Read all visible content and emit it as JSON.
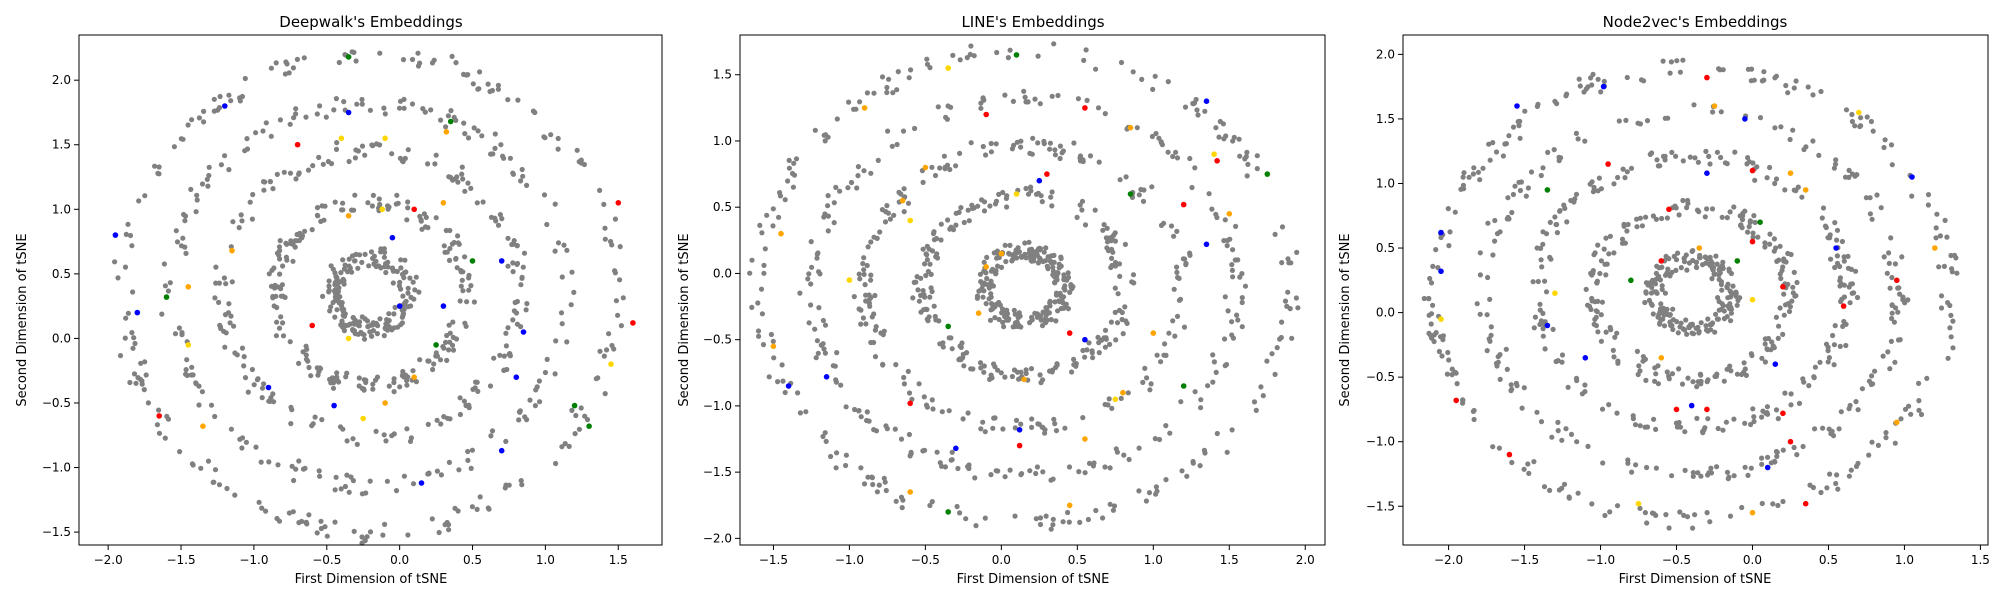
{
  "colors": {
    "background": "#ffffff",
    "frame": "#000000",
    "points_main": "#808080",
    "highlights": [
      "#0000ff",
      "#ff0000",
      "#ffd700",
      "#ffa500",
      "#008000"
    ]
  },
  "chart_data": [
    {
      "type": "scatter",
      "title": "Deepwalk's Embeddings",
      "xlabel": "First Dimension of tSNE",
      "ylabel": "Second Dimension of tSNE",
      "xlim": [
        -2.2,
        1.8
      ],
      "ylim": [
        -1.6,
        2.35
      ],
      "xticks": [
        -2.0,
        -1.5,
        -1.0,
        -0.5,
        0.0,
        0.5,
        1.0,
        1.5
      ],
      "yticks": [
        -1.5,
        -1.0,
        -0.5,
        0.0,
        0.5,
        1.0,
        1.5,
        2.0
      ],
      "tick_labels_x": [
        "−2.0",
        "−1.5",
        "−1.0",
        "−0.5",
        "0.0",
        "0.5",
        "1.0",
        "1.5"
      ],
      "tick_labels_y": [
        "−1.5",
        "−1.0",
        "−0.5",
        "0.0",
        "0.5",
        "1.0",
        "1.5",
        "2.0"
      ],
      "grid": false,
      "center": [
        -0.2,
        0.35
      ],
      "radius_x": 1.7,
      "radius_y": 1.85,
      "point_count": 950,
      "highlight_points": [
        {
          "x": -1.2,
          "y": 1.8,
          "color": "#0000ff"
        },
        {
          "x": -0.7,
          "y": 1.5,
          "color": "#ff0000"
        },
        {
          "x": -0.4,
          "y": 1.55,
          "color": "#ffd700"
        },
        {
          "x": -0.35,
          "y": 1.75,
          "color": "#0000ff"
        },
        {
          "x": -0.1,
          "y": 1.55,
          "color": "#ffd700"
        },
        {
          "x": 0.32,
          "y": 1.6,
          "color": "#ffa500"
        },
        {
          "x": 0.35,
          "y": 1.68,
          "color": "#008000"
        },
        {
          "x": -0.12,
          "y": 1.0,
          "color": "#ffd700"
        },
        {
          "x": 0.1,
          "y": 1.0,
          "color": "#ff0000"
        },
        {
          "x": 0.3,
          "y": 1.05,
          "color": "#ffa500"
        },
        {
          "x": 0.5,
          "y": 0.6,
          "color": "#008000"
        },
        {
          "x": 0.7,
          "y": 0.6,
          "color": "#0000ff"
        },
        {
          "x": 1.5,
          "y": 1.05,
          "color": "#ff0000"
        },
        {
          "x": -0.35,
          "y": 0.95,
          "color": "#ffa500"
        },
        {
          "x": -0.05,
          "y": 0.78,
          "color": "#0000ff"
        },
        {
          "x": 0.0,
          "y": 0.25,
          "color": "#0000ff"
        },
        {
          "x": 0.3,
          "y": 0.25,
          "color": "#0000ff"
        },
        {
          "x": 0.85,
          "y": 0.05,
          "color": "#0000ff"
        },
        {
          "x": 0.25,
          "y": -0.05,
          "color": "#008000"
        },
        {
          "x": -0.6,
          "y": 0.1,
          "color": "#ff0000"
        },
        {
          "x": -0.35,
          "y": 0.0,
          "color": "#ffd700"
        },
        {
          "x": 0.1,
          "y": -0.3,
          "color": "#ffa500"
        },
        {
          "x": 0.8,
          "y": -0.3,
          "color": "#0000ff"
        },
        {
          "x": -1.45,
          "y": -0.05,
          "color": "#ffd700"
        },
        {
          "x": -1.8,
          "y": 0.2,
          "color": "#0000ff"
        },
        {
          "x": -1.6,
          "y": 0.32,
          "color": "#008000"
        },
        {
          "x": -1.45,
          "y": 0.4,
          "color": "#ffa500"
        },
        {
          "x": -1.15,
          "y": 0.68,
          "color": "#ffa500"
        },
        {
          "x": -0.9,
          "y": -0.38,
          "color": "#0000ff"
        },
        {
          "x": -0.45,
          "y": -0.52,
          "color": "#0000ff"
        },
        {
          "x": -0.25,
          "y": -0.62,
          "color": "#ffd700"
        },
        {
          "x": -0.1,
          "y": -0.5,
          "color": "#ffa500"
        },
        {
          "x": -1.65,
          "y": -0.6,
          "color": "#ff0000"
        },
        {
          "x": -1.35,
          "y": -0.68,
          "color": "#ffa500"
        },
        {
          "x": 0.7,
          "y": -0.87,
          "color": "#0000ff"
        },
        {
          "x": 0.15,
          "y": -1.12,
          "color": "#0000ff"
        },
        {
          "x": 1.2,
          "y": -0.52,
          "color": "#008000"
        },
        {
          "x": 1.3,
          "y": -0.68,
          "color": "#008000"
        },
        {
          "x": 1.45,
          "y": -0.2,
          "color": "#ffd700"
        },
        {
          "x": 1.6,
          "y": 0.12,
          "color": "#ff0000"
        },
        {
          "x": -1.95,
          "y": 0.8,
          "color": "#0000ff"
        },
        {
          "x": -0.35,
          "y": 2.18,
          "color": "#008000"
        }
      ]
    },
    {
      "type": "scatter",
      "title": "LINE's Embeddings",
      "xlabel": "First Dimension of tSNE",
      "ylabel": "Second Dimension of tSNE",
      "xlim": [
        -1.72,
        2.13
      ],
      "ylim": [
        -2.05,
        1.8
      ],
      "xticks": [
        -1.5,
        -1.0,
        -0.5,
        0.0,
        0.5,
        1.0,
        1.5,
        2.0
      ],
      "yticks": [
        -2.0,
        -1.5,
        -1.0,
        -0.5,
        0.0,
        0.5,
        1.0,
        1.5
      ],
      "tick_labels_x": [
        "−1.5",
        "−1.0",
        "−0.5",
        "0.0",
        "0.5",
        "1.0",
        "1.5",
        "2.0"
      ],
      "tick_labels_y": [
        "−2.0",
        "−1.5",
        "−1.0",
        "−0.5",
        "0.0",
        "0.5",
        "1.0",
        "1.5"
      ],
      "grid": false,
      "center": [
        0.15,
        -0.1
      ],
      "radius_x": 1.75,
      "radius_y": 1.78,
      "point_count": 1000,
      "highlight_points": [
        {
          "x": -0.9,
          "y": 1.25,
          "color": "#ffa500"
        },
        {
          "x": -0.35,
          "y": 1.55,
          "color": "#ffd700"
        },
        {
          "x": 0.1,
          "y": 1.65,
          "color": "#008000"
        },
        {
          "x": -0.5,
          "y": 0.8,
          "color": "#ffa500"
        },
        {
          "x": -0.1,
          "y": 1.2,
          "color": "#ff0000"
        },
        {
          "x": 0.55,
          "y": 1.25,
          "color": "#ff0000"
        },
        {
          "x": 0.85,
          "y": 1.1,
          "color": "#ffa500"
        },
        {
          "x": 1.35,
          "y": 1.3,
          "color": "#0000ff"
        },
        {
          "x": 1.4,
          "y": 0.9,
          "color": "#ffd700"
        },
        {
          "x": 1.42,
          "y": 0.85,
          "color": "#ff0000"
        },
        {
          "x": 1.75,
          "y": 0.75,
          "color": "#008000"
        },
        {
          "x": 0.3,
          "y": 0.75,
          "color": "#ff0000"
        },
        {
          "x": 0.25,
          "y": 0.7,
          "color": "#0000ff"
        },
        {
          "x": 0.1,
          "y": 0.6,
          "color": "#ffd700"
        },
        {
          "x": -0.6,
          "y": 0.4,
          "color": "#ffd700"
        },
        {
          "x": -0.65,
          "y": 0.55,
          "color": "#ffa500"
        },
        {
          "x": 0.85,
          "y": 0.6,
          "color": "#008000"
        },
        {
          "x": 1.2,
          "y": 0.52,
          "color": "#ff0000"
        },
        {
          "x": 1.5,
          "y": 0.45,
          "color": "#ffa500"
        },
        {
          "x": 1.35,
          "y": 0.22,
          "color": "#0000ff"
        },
        {
          "x": -1.45,
          "y": 0.3,
          "color": "#ffa500"
        },
        {
          "x": -1.0,
          "y": -0.05,
          "color": "#ffd700"
        },
        {
          "x": -0.1,
          "y": 0.05,
          "color": "#ffa500"
        },
        {
          "x": 0.0,
          "y": 0.15,
          "color": "#ffa500"
        },
        {
          "x": -0.15,
          "y": -0.3,
          "color": "#ffa500"
        },
        {
          "x": -0.35,
          "y": -0.4,
          "color": "#008000"
        },
        {
          "x": 0.45,
          "y": -0.45,
          "color": "#ff0000"
        },
        {
          "x": 0.55,
          "y": -0.5,
          "color": "#0000ff"
        },
        {
          "x": 1.0,
          "y": -0.45,
          "color": "#ffa500"
        },
        {
          "x": 0.15,
          "y": -0.8,
          "color": "#ffa500"
        },
        {
          "x": -1.5,
          "y": -0.55,
          "color": "#ffa500"
        },
        {
          "x": -1.15,
          "y": -0.78,
          "color": "#0000ff"
        },
        {
          "x": -1.4,
          "y": -0.85,
          "color": "#0000ff"
        },
        {
          "x": -0.6,
          "y": -0.98,
          "color": "#ff0000"
        },
        {
          "x": 0.12,
          "y": -1.18,
          "color": "#0000ff"
        },
        {
          "x": 0.12,
          "y": -1.3,
          "color": "#ff0000"
        },
        {
          "x": -0.3,
          "y": -1.32,
          "color": "#0000ff"
        },
        {
          "x": 0.55,
          "y": -1.25,
          "color": "#ffa500"
        },
        {
          "x": 0.75,
          "y": -0.95,
          "color": "#ffd700"
        },
        {
          "x": 0.8,
          "y": -0.9,
          "color": "#ffa500"
        },
        {
          "x": 1.2,
          "y": -0.85,
          "color": "#008000"
        },
        {
          "x": -0.35,
          "y": -1.8,
          "color": "#008000"
        },
        {
          "x": -0.6,
          "y": -1.65,
          "color": "#ffa500"
        },
        {
          "x": 0.45,
          "y": -1.75,
          "color": "#ffa500"
        }
      ]
    },
    {
      "type": "scatter",
      "title": "Node2vec's Embeddings",
      "xlabel": "First Dimension of tSNE",
      "ylabel": "Second Dimension of tSNE",
      "xlim": [
        -2.3,
        1.55
      ],
      "ylim": [
        -1.8,
        2.15
      ],
      "xticks": [
        -2.0,
        -1.5,
        -1.0,
        -0.5,
        0.0,
        0.5,
        1.0,
        1.5
      ],
      "yticks": [
        -1.5,
        -1.0,
        -0.5,
        0.0,
        0.5,
        1.0,
        1.5,
        2.0
      ],
      "tick_labels_x": [
        "−2.0",
        "−1.5",
        "−1.0",
        "−0.5",
        "0.0",
        "0.5",
        "1.0",
        "1.5"
      ],
      "tick_labels_y": [
        "−1.5",
        "−1.0",
        "−0.5",
        "0.0",
        "0.5",
        "1.0",
        "1.5",
        "2.0"
      ],
      "grid": false,
      "center": [
        -0.4,
        0.15
      ],
      "radius_x": 1.7,
      "radius_y": 1.75,
      "point_count": 1000,
      "highlight_points": [
        {
          "x": -1.55,
          "y": 1.6,
          "color": "#0000ff"
        },
        {
          "x": -0.98,
          "y": 1.75,
          "color": "#0000ff"
        },
        {
          "x": -0.95,
          "y": 1.15,
          "color": "#ff0000"
        },
        {
          "x": -1.35,
          "y": 0.95,
          "color": "#008000"
        },
        {
          "x": -0.3,
          "y": 1.82,
          "color": "#ff0000"
        },
        {
          "x": -0.25,
          "y": 1.6,
          "color": "#ffa500"
        },
        {
          "x": -0.05,
          "y": 1.5,
          "color": "#0000ff"
        },
        {
          "x": -0.3,
          "y": 1.08,
          "color": "#0000ff"
        },
        {
          "x": 0.0,
          "y": 1.1,
          "color": "#ff0000"
        },
        {
          "x": 0.25,
          "y": 1.08,
          "color": "#ffa500"
        },
        {
          "x": 0.35,
          "y": 0.95,
          "color": "#ffa500"
        },
        {
          "x": 0.7,
          "y": 1.55,
          "color": "#ffd700"
        },
        {
          "x": 1.05,
          "y": 1.05,
          "color": "#0000ff"
        },
        {
          "x": 1.2,
          "y": 0.5,
          "color": "#ffa500"
        },
        {
          "x": 0.55,
          "y": 0.5,
          "color": "#0000ff"
        },
        {
          "x": -2.05,
          "y": 0.62,
          "color": "#0000ff"
        },
        {
          "x": -2.05,
          "y": 0.32,
          "color": "#0000ff"
        },
        {
          "x": -2.05,
          "y": -0.05,
          "color": "#ffd700"
        },
        {
          "x": -1.3,
          "y": 0.15,
          "color": "#ffd700"
        },
        {
          "x": -0.8,
          "y": 0.25,
          "color": "#008000"
        },
        {
          "x": -0.6,
          "y": 0.4,
          "color": "#ff0000"
        },
        {
          "x": -0.55,
          "y": 0.8,
          "color": "#ff0000"
        },
        {
          "x": -0.35,
          "y": 0.5,
          "color": "#ffa500"
        },
        {
          "x": -0.1,
          "y": 0.4,
          "color": "#008000"
        },
        {
          "x": 0.0,
          "y": 0.55,
          "color": "#ff0000"
        },
        {
          "x": 0.05,
          "y": 0.7,
          "color": "#008000"
        },
        {
          "x": 0.2,
          "y": 0.2,
          "color": "#ff0000"
        },
        {
          "x": 0.0,
          "y": 0.1,
          "color": "#ffd700"
        },
        {
          "x": 0.6,
          "y": 0.05,
          "color": "#ff0000"
        },
        {
          "x": 0.95,
          "y": 0.25,
          "color": "#ff0000"
        },
        {
          "x": -1.35,
          "y": -0.1,
          "color": "#0000ff"
        },
        {
          "x": -1.1,
          "y": -0.35,
          "color": "#0000ff"
        },
        {
          "x": -0.6,
          "y": -0.35,
          "color": "#ffa500"
        },
        {
          "x": -1.95,
          "y": -0.68,
          "color": "#ff0000"
        },
        {
          "x": -1.6,
          "y": -1.1,
          "color": "#ff0000"
        },
        {
          "x": -0.5,
          "y": -0.75,
          "color": "#ff0000"
        },
        {
          "x": -0.3,
          "y": -0.75,
          "color": "#ff0000"
        },
        {
          "x": 0.15,
          "y": -0.4,
          "color": "#0000ff"
        },
        {
          "x": 0.2,
          "y": -0.78,
          "color": "#ff0000"
        },
        {
          "x": 0.1,
          "y": -1.2,
          "color": "#0000ff"
        },
        {
          "x": 0.25,
          "y": -1.0,
          "color": "#ff0000"
        },
        {
          "x": -0.75,
          "y": -1.48,
          "color": "#ffd700"
        },
        {
          "x": 0.35,
          "y": -1.48,
          "color": "#ff0000"
        },
        {
          "x": 0.0,
          "y": -1.55,
          "color": "#ffa500"
        },
        {
          "x": 0.95,
          "y": -0.85,
          "color": "#ffa500"
        },
        {
          "x": -0.4,
          "y": -0.72,
          "color": "#0000ff"
        }
      ]
    }
  ]
}
